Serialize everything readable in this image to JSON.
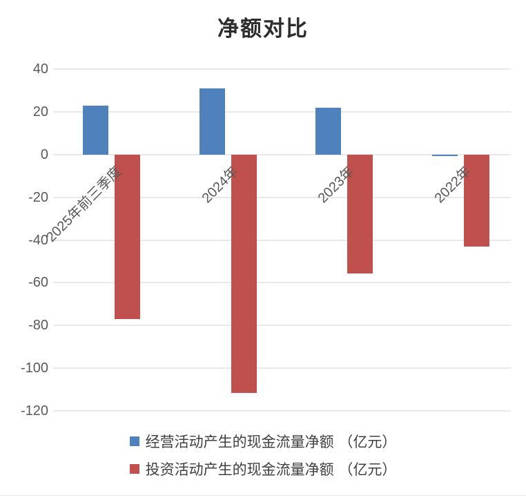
{
  "title": "净额对比",
  "chart_data": {
    "type": "bar",
    "title": "净额对比",
    "categories": [
      "2025年前三季度",
      "2024年",
      "2023年",
      "2022年"
    ],
    "series": [
      {
        "name": "经营活动产生的现金流量净额 （亿元）",
        "color": "#4F81BD",
        "values": [
          22.9,
          31.0,
          21.9,
          -0.6
        ]
      },
      {
        "name": "投资活动产生的现金流量净额 （亿元）",
        "color": "#C0504D",
        "values": [
          -77.1,
          -111.6,
          -55.8,
          -43.2
        ]
      }
    ],
    "yticks": [
      40,
      20,
      0,
      -20,
      -40,
      -60,
      -80,
      -100,
      -120
    ],
    "ylim": [
      -120,
      40
    ],
    "xlabel": "",
    "ylabel": "",
    "grid": true,
    "legend_position": "bottom",
    "category_label_rotation_deg": -45,
    "colors": {
      "gridline": "#E9E9E9",
      "tick_text": "#595959",
      "title_text": "#2D2D2D",
      "legend_text": "#404040",
      "background": "#FFFFFF"
    }
  }
}
